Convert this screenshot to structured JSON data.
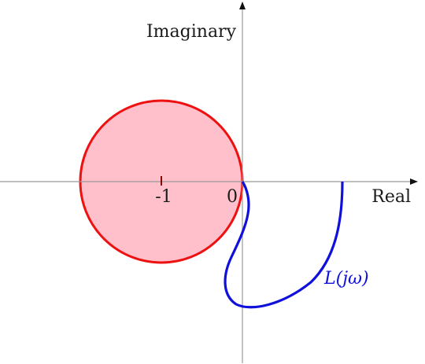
{
  "diagram": {
    "x_axis_label": "Real",
    "y_axis_label": "Imaginary",
    "critical_point_label": "-1",
    "origin_label": "0",
    "curve_label": "L(jω)",
    "circle_center": [
      -1,
      0
    ],
    "circle_radius": 1,
    "colors": {
      "axis": "#999999",
      "arrow": "#111111",
      "circle_fill": "#ffc0cb",
      "circle_stroke": "#ee1111",
      "critical_tick": "#8b0000",
      "curve": "#1010dd",
      "text": "#1a1a1a"
    }
  }
}
